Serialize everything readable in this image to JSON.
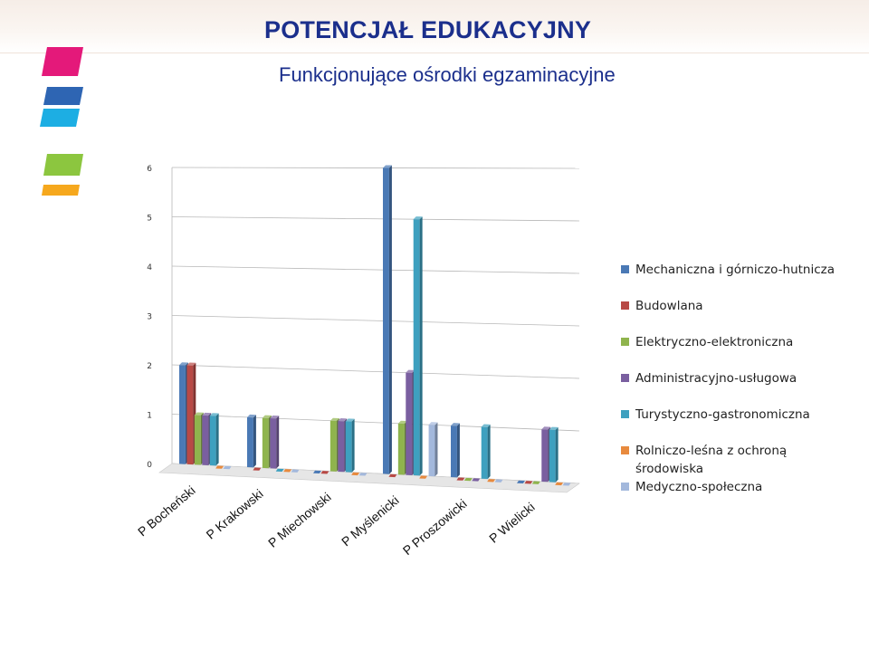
{
  "header": {
    "title": "POTENCJAŁ EDUKACYJNY",
    "subtitle": "Funkcjonujące ośrodki egzaminacyjne"
  },
  "logo": {
    "icon": "stripes-logo-icon",
    "colors": [
      "#e4197a",
      "#2e65b3",
      "#1daee3",
      "#8cc63f",
      "#f6a81d"
    ]
  },
  "chart_data": {
    "type": "bar",
    "title": "",
    "xlabel": "",
    "ylabel": "",
    "ylim": [
      0,
      6
    ],
    "yticks": [
      "0",
      "1",
      "2",
      "3",
      "4",
      "5",
      "6"
    ],
    "grid": true,
    "legend_position": "right",
    "categories": [
      "P Bocheński",
      "P Krakowski",
      "P Miechowski",
      "P Myślenicki",
      "P Proszowicki",
      "P Wielicki"
    ],
    "series": [
      {
        "name": "Mechaniczna i górniczo-hutnicza",
        "color": "#4a79b5",
        "values": [
          2,
          1,
          0,
          6,
          1,
          0
        ]
      },
      {
        "name": "Budowlana",
        "color": "#b84945",
        "values": [
          2,
          0,
          0,
          0,
          0,
          0
        ]
      },
      {
        "name": "Elektryczno-elektroniczna",
        "color": "#8fb44d",
        "values": [
          1,
          1,
          1,
          1,
          0,
          0
        ]
      },
      {
        "name": "Administracyjno-usługowa",
        "color": "#7a5fa0",
        "values": [
          1,
          1,
          1,
          2,
          0,
          1
        ]
      },
      {
        "name": "Turystyczno-gastronomiczna",
        "color": "#3ea0bf",
        "values": [
          1,
          0,
          1,
          5,
          1,
          1
        ]
      },
      {
        "name": "Rolniczo-leśna z ochroną środowiska",
        "color": "#e88a3e",
        "values": [
          0,
          0,
          0,
          0,
          0,
          0
        ]
      },
      {
        "name": "Medyczno-społeczna",
        "color": "#a3b8dc",
        "values": [
          0,
          0,
          0,
          1,
          0,
          0
        ]
      }
    ]
  }
}
